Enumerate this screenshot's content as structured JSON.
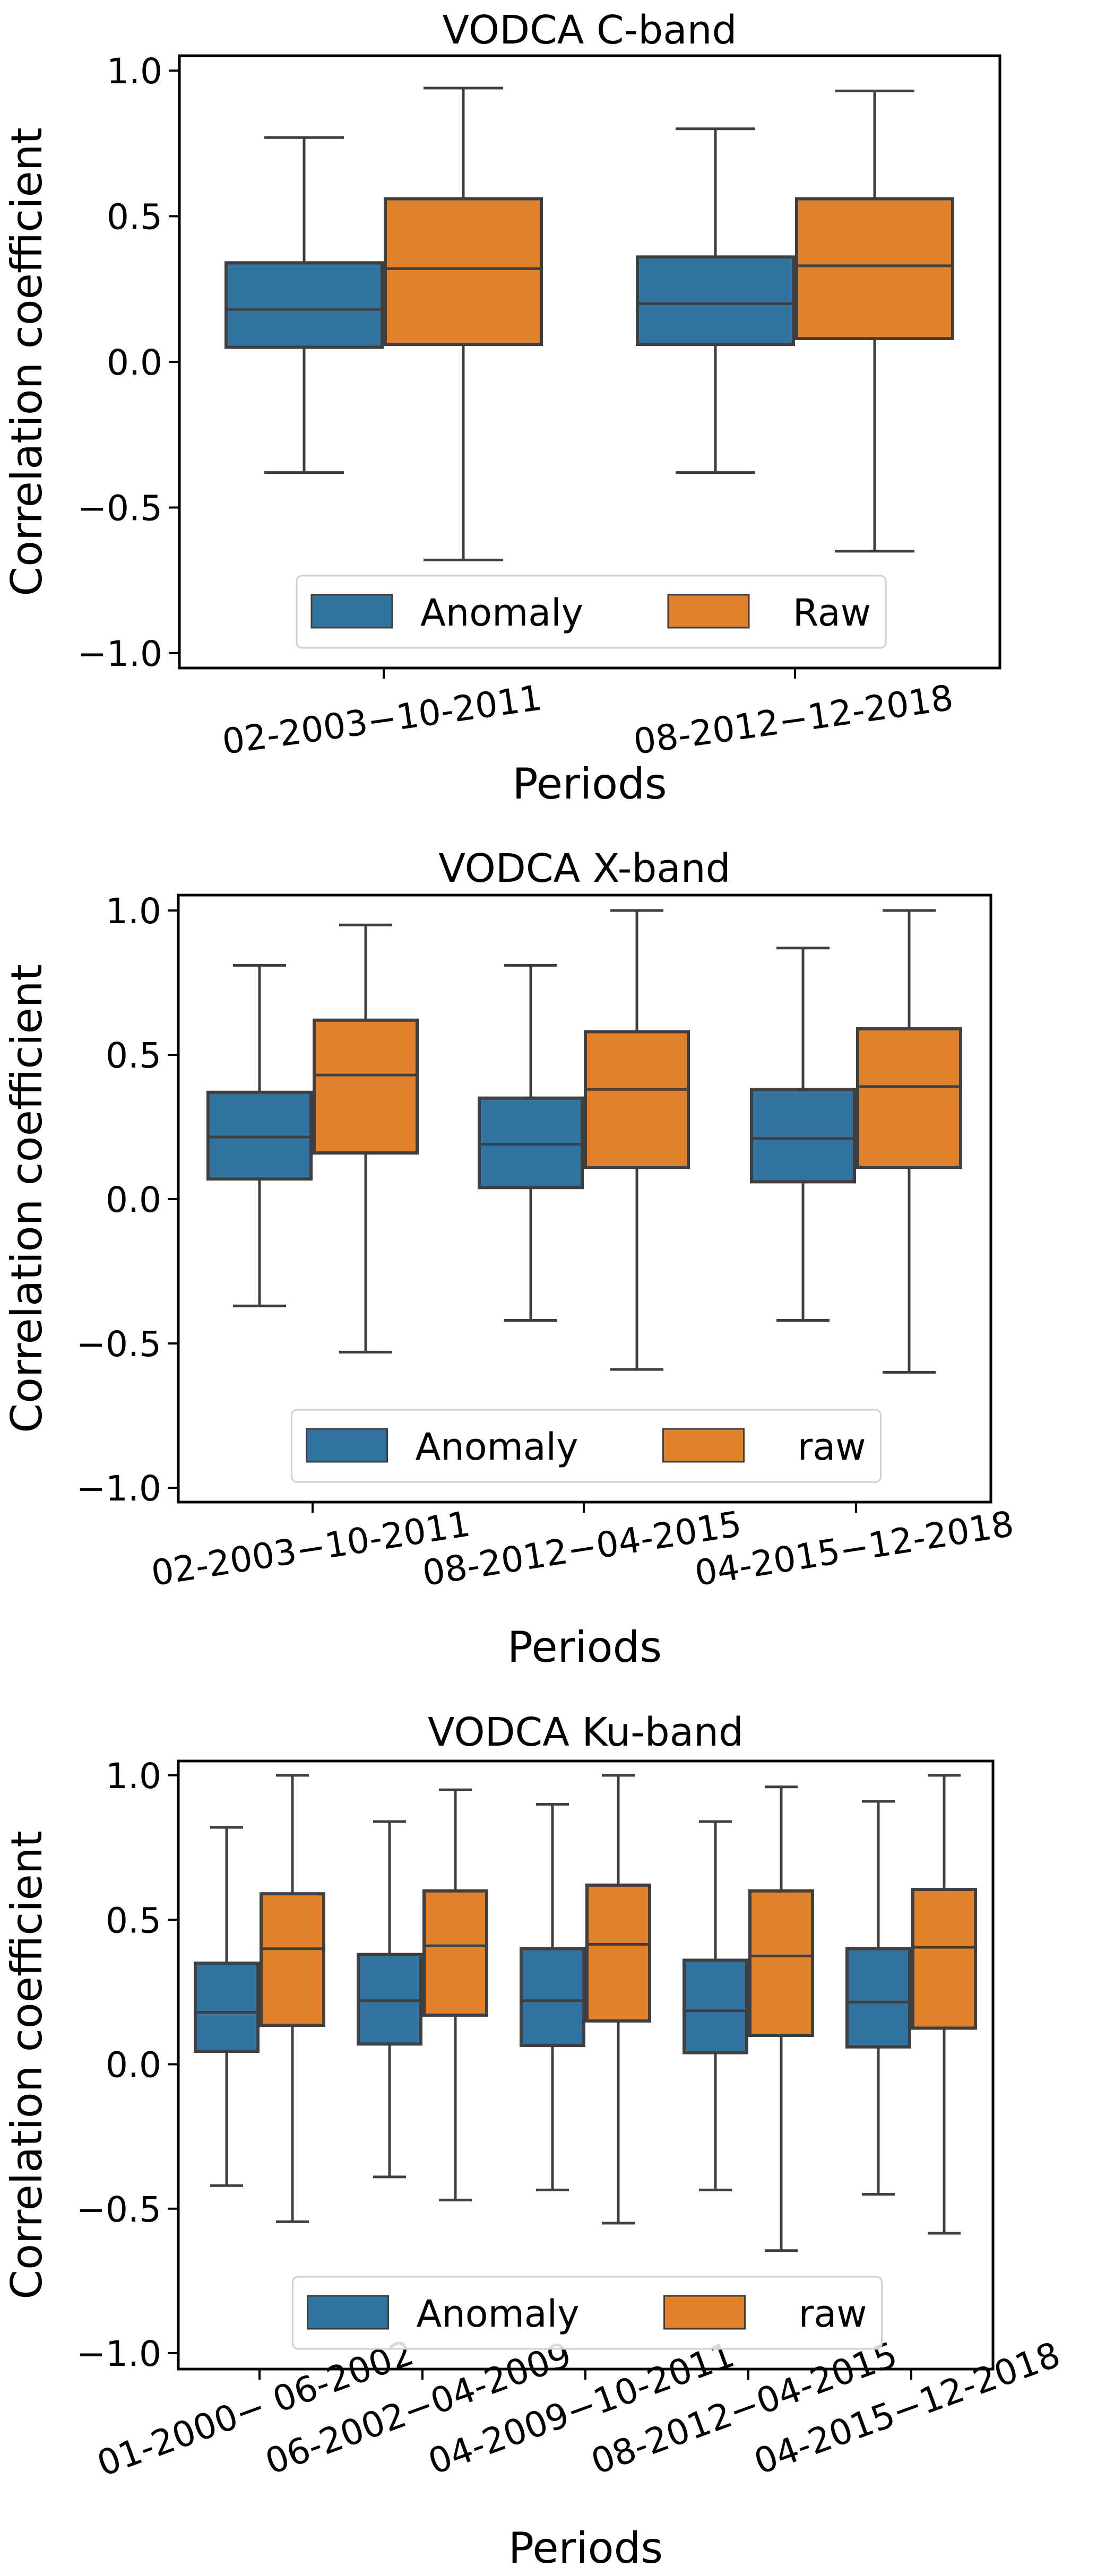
{
  "colors": {
    "anomaly": "#3274a1",
    "raw": "#e1812c",
    "edge": "#3f3f3f"
  },
  "chart_data": [
    {
      "type": "box",
      "title": "VODCA C-band",
      "xlabel": "Periods",
      "ylabel": "Correlation coefficient",
      "ylim": [
        -1.05,
        1.05
      ],
      "yticks": [
        1.0,
        0.5,
        0.0,
        -0.5,
        -1.0
      ],
      "ytick_labels": [
        "1.0",
        "0.5",
        "0.0",
        "−0.5",
        "−1.0"
      ],
      "categories": [
        "02-2003−10-2011",
        "08-2012−12-2018"
      ],
      "legend": {
        "placement": "lower-center",
        "entries": [
          "Anomaly",
          "Raw"
        ]
      },
      "series": [
        {
          "name": "Anomaly",
          "boxes": [
            {
              "whisker_low": -0.38,
              "q1": 0.05,
              "median": 0.18,
              "q3": 0.34,
              "whisker_high": 0.77
            },
            {
              "whisker_low": -0.38,
              "q1": 0.06,
              "median": 0.2,
              "q3": 0.36,
              "whisker_high": 0.8
            }
          ]
        },
        {
          "name": "Raw",
          "boxes": [
            {
              "whisker_low": -0.68,
              "q1": 0.06,
              "median": 0.32,
              "q3": 0.56,
              "whisker_high": 0.94
            },
            {
              "whisker_low": -0.65,
              "q1": 0.08,
              "median": 0.33,
              "q3": 0.56,
              "whisker_high": 0.93
            }
          ]
        }
      ]
    },
    {
      "type": "box",
      "title": "VODCA X-band",
      "xlabel": "Periods",
      "ylabel": "Correlation coefficient",
      "ylim": [
        -1.05,
        1.05
      ],
      "yticks": [
        1.0,
        0.5,
        0.0,
        -0.5,
        -1.0
      ],
      "ytick_labels": [
        "1.0",
        "0.5",
        "0.0",
        "−0.5",
        "−1.0"
      ],
      "categories": [
        "02-2003−10-2011",
        "08-2012−04-2015",
        "04-2015−12-2018"
      ],
      "legend": {
        "placement": "lower-center",
        "entries": [
          "Anomaly",
          "raw"
        ]
      },
      "series": [
        {
          "name": "Anomaly",
          "boxes": [
            {
              "whisker_low": -0.37,
              "q1": 0.07,
              "median": 0.215,
              "q3": 0.37,
              "whisker_high": 0.81
            },
            {
              "whisker_low": -0.42,
              "q1": 0.04,
              "median": 0.19,
              "q3": 0.35,
              "whisker_high": 0.81
            },
            {
              "whisker_low": -0.42,
              "q1": 0.06,
              "median": 0.21,
              "q3": 0.38,
              "whisker_high": 0.87
            }
          ]
        },
        {
          "name": "raw",
          "boxes": [
            {
              "whisker_low": -0.53,
              "q1": 0.16,
              "median": 0.43,
              "q3": 0.62,
              "whisker_high": 0.95
            },
            {
              "whisker_low": -0.59,
              "q1": 0.11,
              "median": 0.38,
              "q3": 0.58,
              "whisker_high": 1.0
            },
            {
              "whisker_low": -0.6,
              "q1": 0.11,
              "median": 0.39,
              "q3": 0.59,
              "whisker_high": 1.0
            }
          ]
        }
      ]
    },
    {
      "type": "box",
      "title": "VODCA Ku-band",
      "xlabel": "Periods",
      "ylabel": "Correlation coefficient",
      "ylim": [
        -1.05,
        1.05
      ],
      "yticks": [
        1.0,
        0.5,
        0.0,
        -0.5,
        -1.0
      ],
      "ytick_labels": [
        "1.0",
        "0.5",
        "0.0",
        "−0.5",
        "−1.0"
      ],
      "categories": [
        "01-2000− 06-2002",
        "06-2002−04-2009",
        "04-2009−10-2011",
        "08-2012−04-2015",
        "04-2015−12-2018"
      ],
      "legend": {
        "placement": "lower-center",
        "entries": [
          "Anomaly",
          "raw"
        ]
      },
      "series": [
        {
          "name": "Anomaly",
          "boxes": [
            {
              "whisker_low": -0.42,
              "q1": 0.045,
              "median": 0.18,
              "q3": 0.35,
              "whisker_high": 0.82
            },
            {
              "whisker_low": -0.39,
              "q1": 0.07,
              "median": 0.22,
              "q3": 0.38,
              "whisker_high": 0.84
            },
            {
              "whisker_low": -0.435,
              "q1": 0.065,
              "median": 0.22,
              "q3": 0.4,
              "whisker_high": 0.9
            },
            {
              "whisker_low": -0.435,
              "q1": 0.04,
              "median": 0.185,
              "q3": 0.36,
              "whisker_high": 0.84
            },
            {
              "whisker_low": -0.45,
              "q1": 0.06,
              "median": 0.215,
              "q3": 0.4,
              "whisker_high": 0.91
            }
          ]
        },
        {
          "name": "raw",
          "boxes": [
            {
              "whisker_low": -0.545,
              "q1": 0.135,
              "median": 0.4,
              "q3": 0.59,
              "whisker_high": 1.0
            },
            {
              "whisker_low": -0.47,
              "q1": 0.17,
              "median": 0.41,
              "q3": 0.6,
              "whisker_high": 0.95
            },
            {
              "whisker_low": -0.55,
              "q1": 0.15,
              "median": 0.415,
              "q3": 0.62,
              "whisker_high": 1.0
            },
            {
              "whisker_low": -0.645,
              "q1": 0.1,
              "median": 0.375,
              "q3": 0.6,
              "whisker_high": 0.96
            },
            {
              "whisker_low": -0.585,
              "q1": 0.125,
              "median": 0.405,
              "q3": 0.605,
              "whisker_high": 1.0
            }
          ]
        }
      ]
    }
  ]
}
